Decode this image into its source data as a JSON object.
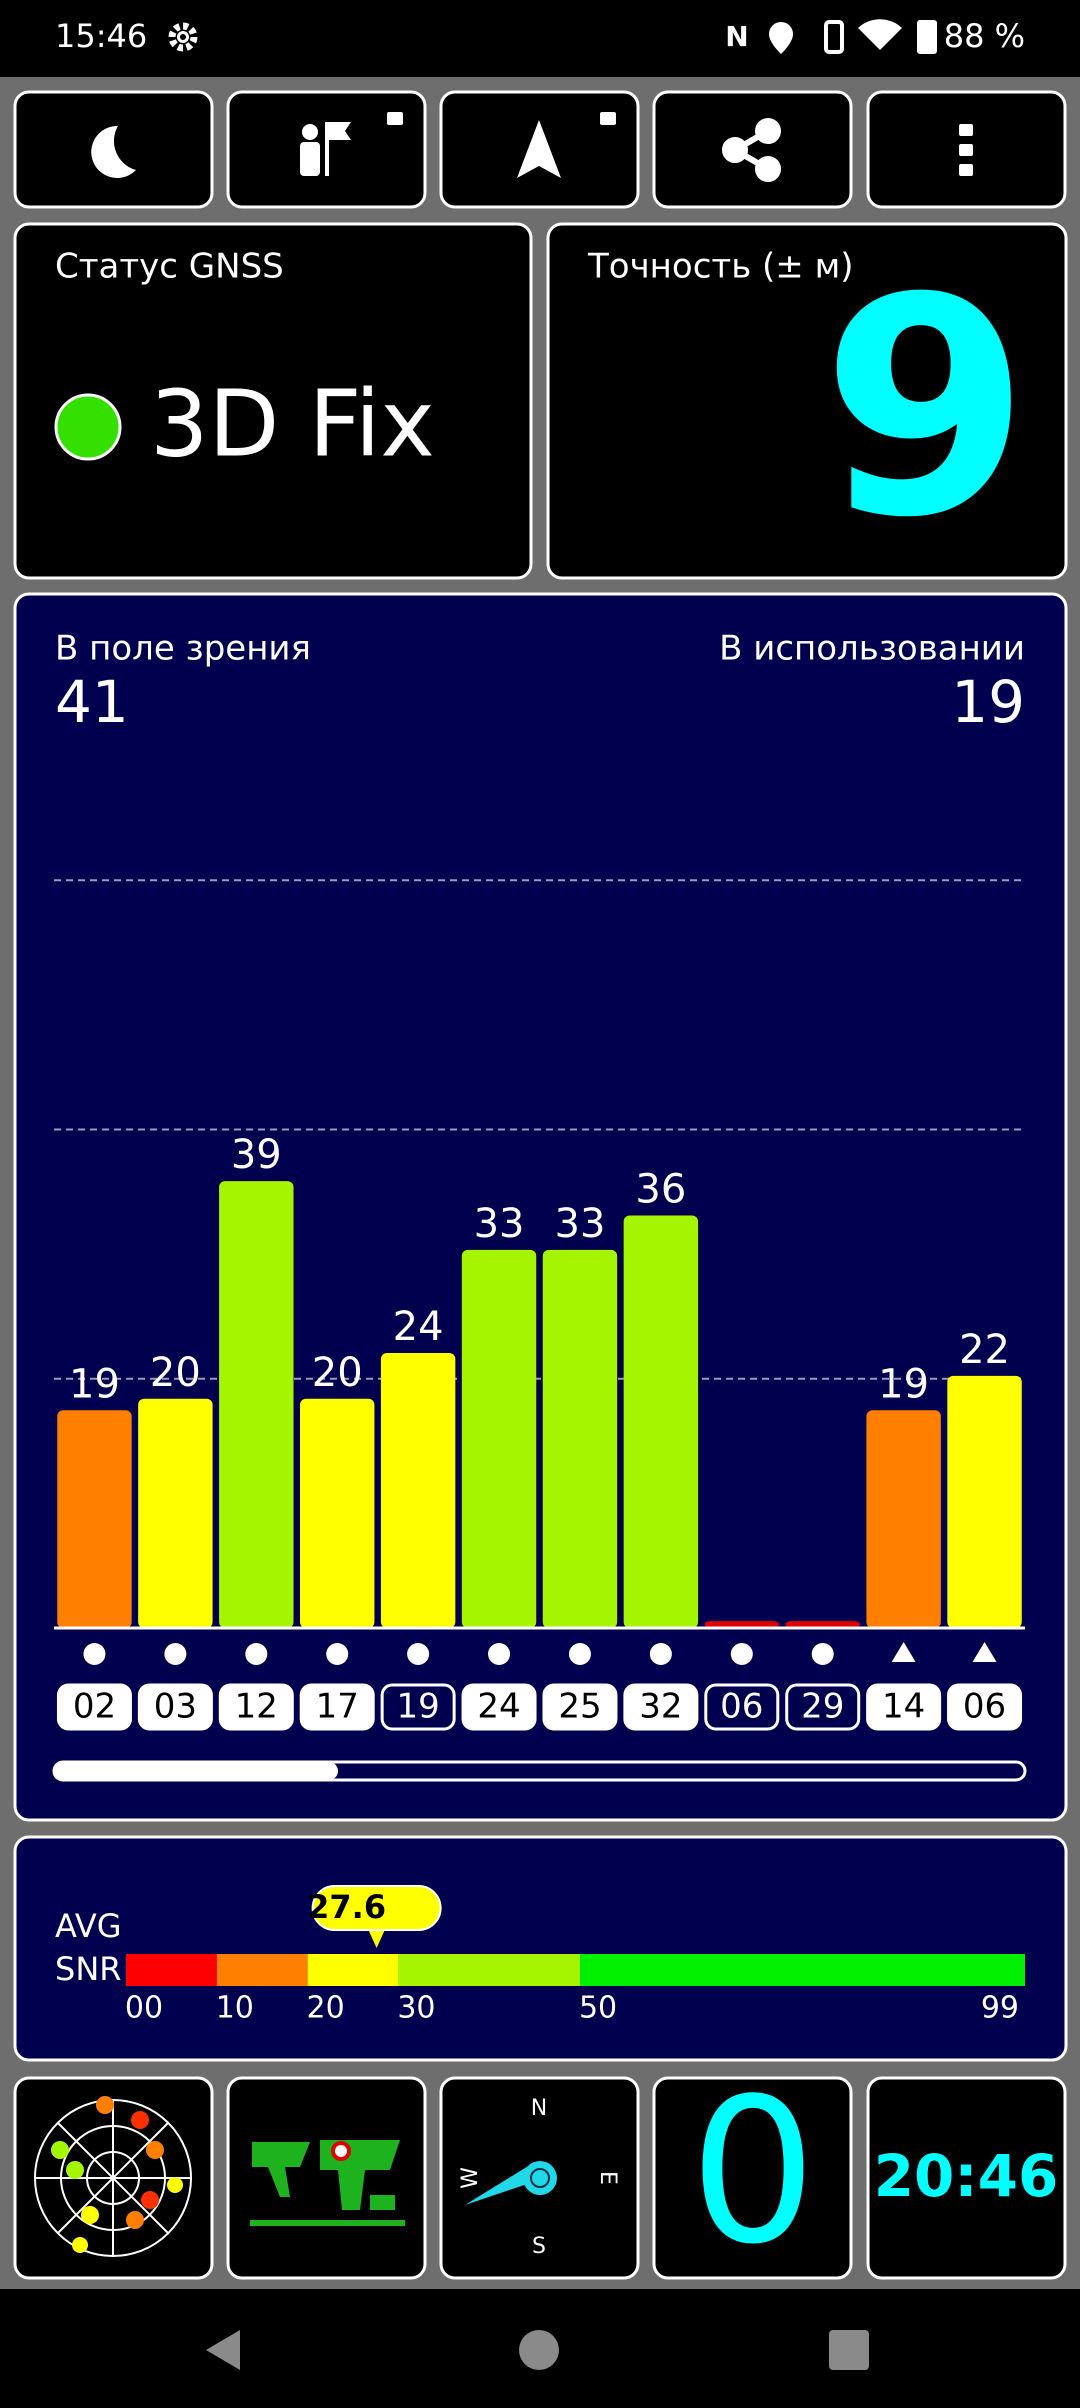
{
  "status_bar": {
    "time": "15:46",
    "battery": "88 %"
  },
  "gnss_status": {
    "title": "Статус GNSS",
    "fix": "3D Fix"
  },
  "accuracy": {
    "title": "Точность (± м)",
    "value": 9
  },
  "satellites": {
    "in_view_label": "В поле зрения",
    "in_view": 41,
    "in_use_label": "В использовании",
    "in_use": 19
  },
  "chart_data": {
    "type": "bar",
    "categories": [
      "02",
      "03",
      "12",
      "17",
      "19",
      "24",
      "25",
      "32",
      "06",
      "29",
      "14",
      "06"
    ],
    "values": [
      19,
      20,
      39,
      20,
      24,
      33,
      33,
      36,
      0.6,
      0.6,
      19,
      22
    ],
    "value_labels": [
      "19",
      "20",
      "39",
      "20",
      "24",
      "33",
      "33",
      "36",
      null,
      null,
      "19",
      "22"
    ],
    "colors": [
      "#ff7f00",
      "#ffff00",
      "#a6f500",
      "#ffff00",
      "#ffff00",
      "#a6f500",
      "#a6f500",
      "#a6f500",
      "#e00000",
      "#e00000",
      "#ff7f00",
      "#ffff00"
    ],
    "markers": [
      "circle",
      "circle",
      "circle",
      "circle",
      "circle",
      "circle",
      "circle",
      "circle",
      "circle",
      "circle",
      "triangle",
      "triangle"
    ],
    "used": [
      true,
      true,
      true,
      true,
      false,
      true,
      true,
      true,
      false,
      false,
      true,
      true
    ],
    "ylim": [
      0,
      87
    ],
    "yticks": [
      21.75,
      43.5,
      65.25
    ],
    "grid": true
  },
  "snr": {
    "label_top": "AVG",
    "label_bottom": "SNR",
    "value": 27.6,
    "xlim": [
      0,
      99
    ],
    "xticks": [
      {
        "value": 0,
        "label": "00"
      },
      10,
      20,
      30,
      50,
      99
    ],
    "band_colors": [
      "#ff0000",
      "#ff7f00",
      "#ffff00",
      "#a6f500",
      "#00f000"
    ]
  },
  "tiles": {
    "compass": {
      "n": "N",
      "e": "E",
      "s": "S",
      "w": "W"
    },
    "count": 0,
    "clock": "20:46"
  }
}
